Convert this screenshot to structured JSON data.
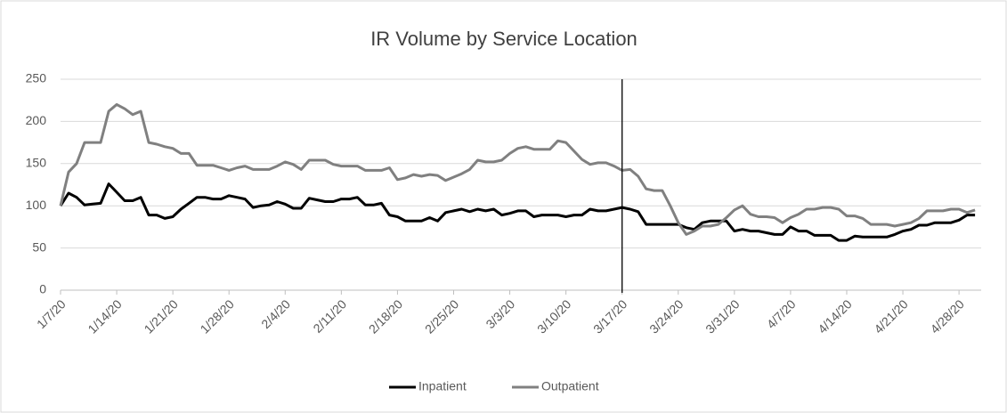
{
  "chart_data": {
    "type": "line",
    "title": "IR Volume by Service Location",
    "x": [
      "1/7/20",
      "1/8/20",
      "1/9/20",
      "1/10/20",
      "1/11/20",
      "1/12/20",
      "1/13/20",
      "1/14/20",
      "1/15/20",
      "1/16/20",
      "1/17/20",
      "1/18/20",
      "1/19/20",
      "1/20/20",
      "1/21/20",
      "1/22/20",
      "1/23/20",
      "1/24/20",
      "1/25/20",
      "1/26/20",
      "1/27/20",
      "1/28/20",
      "1/29/20",
      "1/30/20",
      "1/31/20",
      "2/1/20",
      "2/2/20",
      "2/3/20",
      "2/4/20",
      "2/5/20",
      "2/6/20",
      "2/7/20",
      "2/8/20",
      "2/9/20",
      "2/10/20",
      "2/11/20",
      "2/12/20",
      "2/13/20",
      "2/14/20",
      "2/15/20",
      "2/16/20",
      "2/17/20",
      "2/18/20",
      "2/19/20",
      "2/20/20",
      "2/21/20",
      "2/22/20",
      "2/23/20",
      "2/24/20",
      "2/25/20",
      "2/26/20",
      "2/27/20",
      "2/28/20",
      "2/29/20",
      "3/1/20",
      "3/2/20",
      "3/3/20",
      "3/4/20",
      "3/5/20",
      "3/6/20",
      "3/7/20",
      "3/8/20",
      "3/9/20",
      "3/10/20",
      "3/11/20",
      "3/12/20",
      "3/13/20",
      "3/14/20",
      "3/15/20",
      "3/16/20",
      "3/17/20",
      "3/18/20",
      "3/19/20",
      "3/20/20",
      "3/21/20",
      "3/22/20",
      "3/23/20",
      "3/24/20",
      "3/25/20",
      "3/26/20",
      "3/27/20",
      "3/28/20",
      "3/29/20",
      "3/30/20",
      "3/31/20",
      "4/1/20",
      "4/2/20",
      "4/3/20",
      "4/4/20",
      "4/5/20",
      "4/6/20",
      "4/7/20",
      "4/8/20",
      "4/9/20",
      "4/10/20",
      "4/11/20",
      "4/12/20",
      "4/13/20",
      "4/14/20",
      "4/15/20",
      "4/16/20",
      "4/17/20",
      "4/18/20",
      "4/19/20",
      "4/20/20",
      "4/21/20",
      "4/22/20",
      "4/23/20",
      "4/24/20",
      "4/25/20",
      "4/26/20",
      "4/27/20",
      "4/28/20",
      "4/29/20",
      "4/30/20"
    ],
    "series": [
      {
        "name": "Inpatient",
        "color": "#000000",
        "values": [
          100,
          115,
          110,
          101,
          102,
          103,
          126,
          116,
          106,
          106,
          110,
          89,
          89,
          85,
          87,
          96,
          103,
          110,
          110,
          108,
          108,
          112,
          110,
          108,
          98,
          100,
          101,
          105,
          102,
          97,
          97,
          109,
          107,
          105,
          105,
          108,
          108,
          110,
          101,
          101,
          103,
          89,
          87,
          82,
          82,
          82,
          86,
          82,
          92,
          94,
          96,
          93,
          96,
          94,
          96,
          89,
          91,
          94,
          94,
          87,
          89,
          89,
          89,
          87,
          89,
          89,
          96,
          94,
          94,
          96,
          98,
          96,
          93,
          78,
          78,
          78,
          78,
          78,
          74,
          72,
          80,
          82,
          82,
          82,
          70,
          72,
          70,
          70,
          68,
          66,
          66,
          75,
          70,
          70,
          65,
          65,
          65,
          59,
          59,
          64,
          63,
          63,
          63,
          63,
          66,
          70,
          72,
          77,
          77,
          80,
          80,
          80,
          83,
          89,
          89
        ]
      },
      {
        "name": "Outpatient",
        "color": "#808080",
        "values": [
          100,
          140,
          150,
          175,
          175,
          175,
          212,
          220,
          215,
          208,
          212,
          175,
          173,
          170,
          168,
          162,
          162,
          148,
          148,
          148,
          145,
          142,
          145,
          147,
          143,
          143,
          143,
          147,
          152,
          149,
          143,
          154,
          154,
          154,
          149,
          147,
          147,
          147,
          142,
          142,
          142,
          145,
          131,
          133,
          137,
          135,
          137,
          136,
          130,
          134,
          138,
          143,
          154,
          152,
          152,
          154,
          162,
          168,
          170,
          167,
          167,
          167,
          177,
          175,
          165,
          155,
          149,
          151,
          151,
          147,
          142,
          143,
          135,
          120,
          118,
          118,
          100,
          80,
          66,
          70,
          76,
          76,
          78,
          86,
          95,
          100,
          90,
          87,
          87,
          86,
          80,
          86,
          90,
          96,
          96,
          98,
          98,
          96,
          88,
          88,
          85,
          78,
          78,
          78,
          76,
          78,
          80,
          85,
          94,
          94,
          94,
          96,
          96,
          92,
          95
        ]
      }
    ],
    "xticks": [
      "1/7/20",
      "1/14/20",
      "1/21/20",
      "1/28/20",
      "2/4/20",
      "2/11/20",
      "2/18/20",
      "2/25/20",
      "3/3/20",
      "3/10/20",
      "3/17/20",
      "3/24/20",
      "3/31/20",
      "4/7/20",
      "4/14/20",
      "4/21/20",
      "4/28/20"
    ],
    "vline_x": "3/17/20",
    "ylim": [
      0,
      250
    ],
    "yticks": [
      0,
      50,
      100,
      150,
      200,
      250
    ],
    "grid": true,
    "legend": "bottom"
  }
}
